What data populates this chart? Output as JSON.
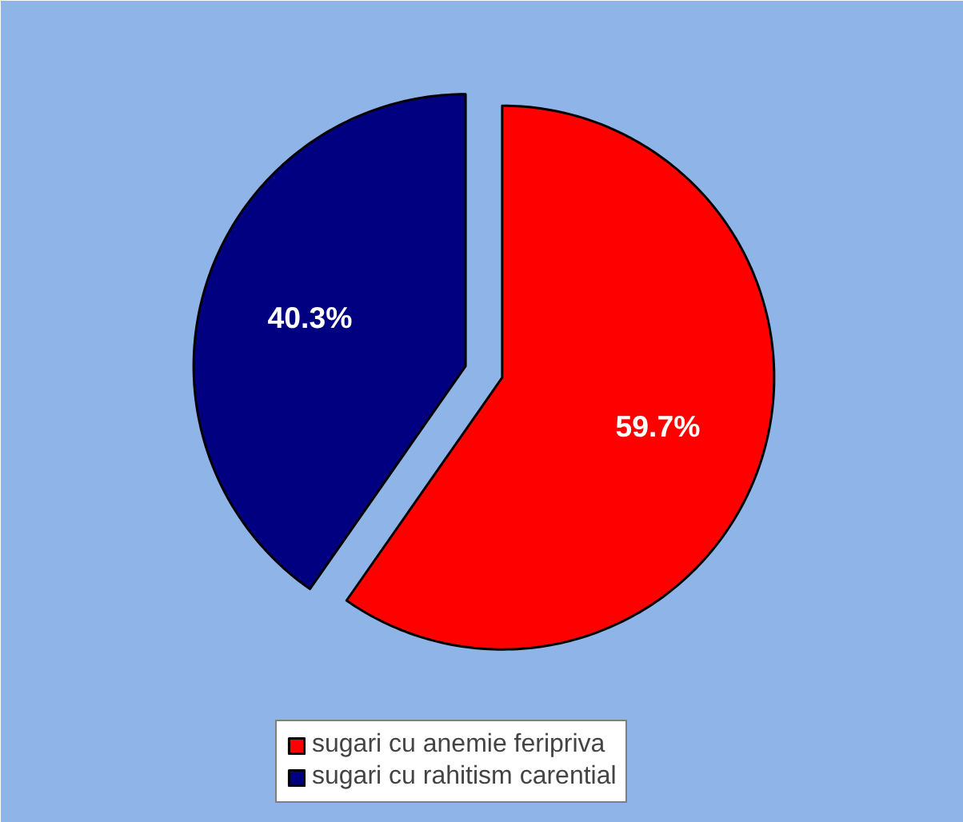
{
  "chart_data": {
    "type": "pie",
    "categories": [
      "sugari cu anemie feripriva",
      "sugari cu rahitism carential"
    ],
    "values": [
      59.7,
      40.3
    ],
    "colors": [
      "#ff0000",
      "#000080"
    ],
    "value_labels": [
      "59.7%",
      "40.3%"
    ],
    "legend": "bottom"
  }
}
